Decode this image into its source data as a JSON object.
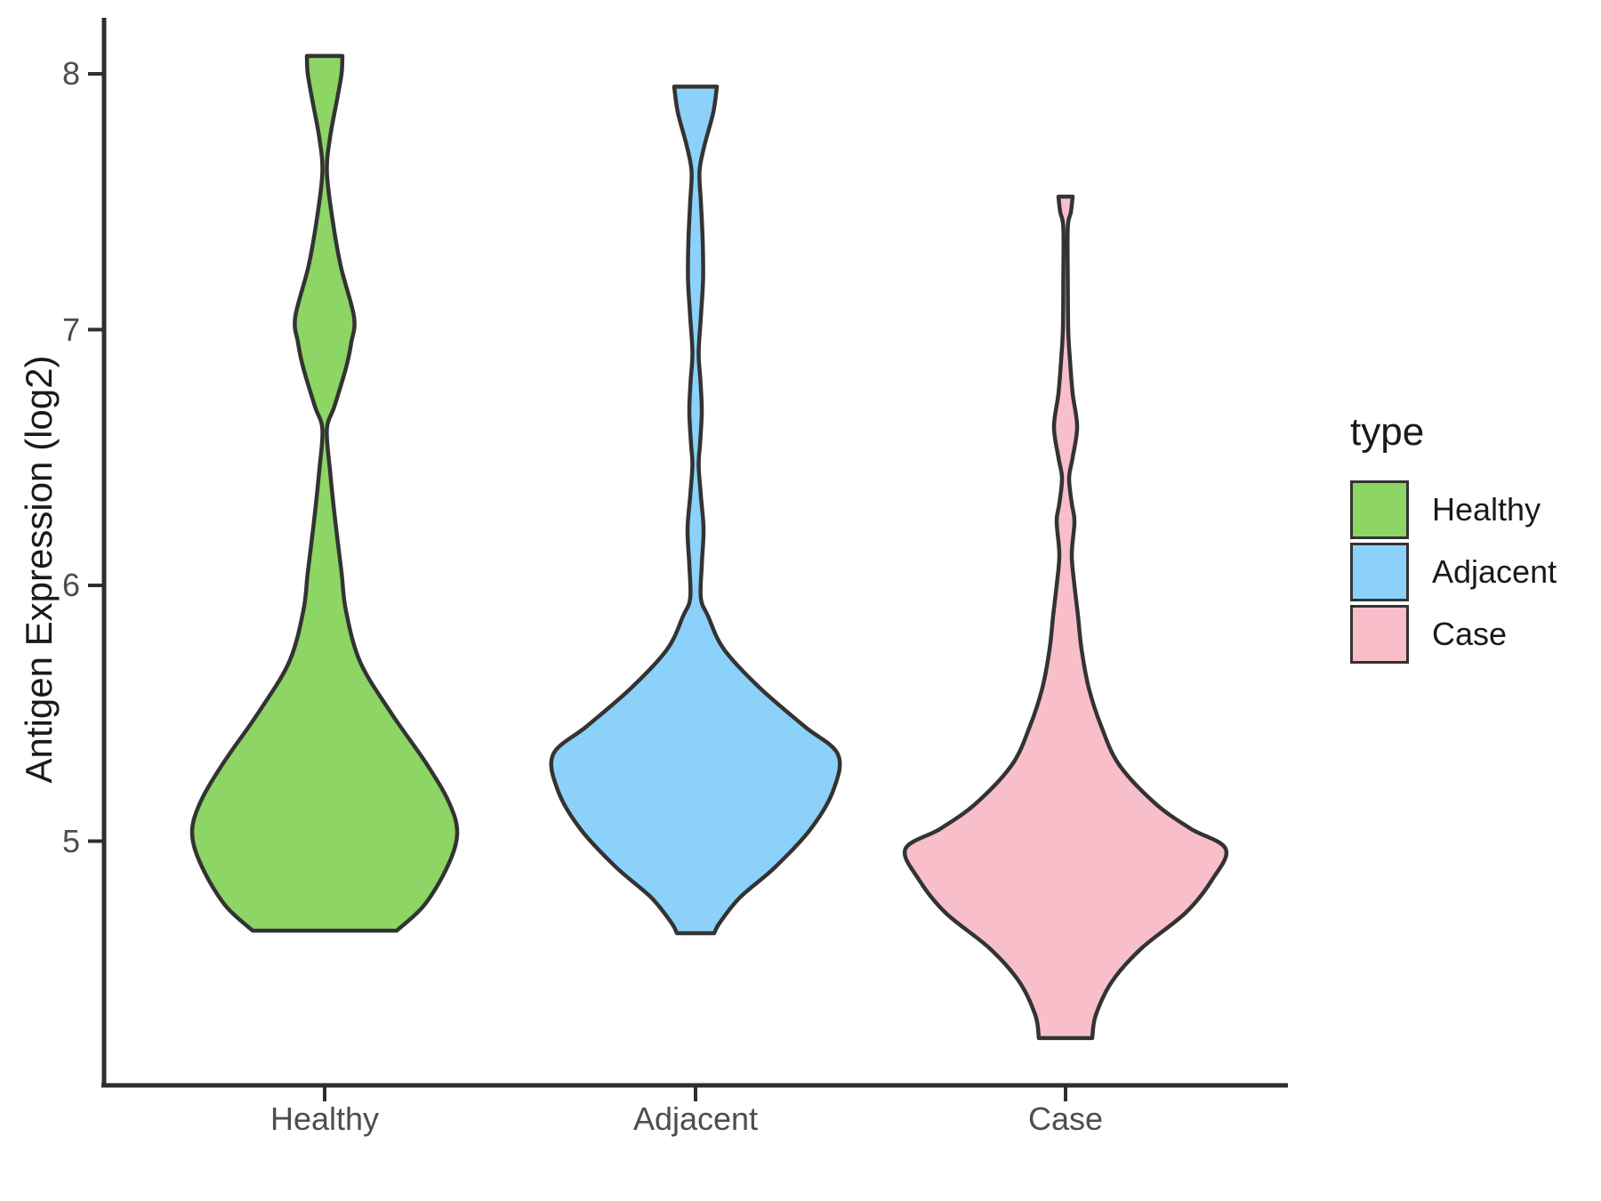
{
  "figure": {
    "background": "#ffffff",
    "outline_color": "#333333",
    "axis_color": "#2e2e2e",
    "tick_text_color": "#4d4d4d"
  },
  "y_axis": {
    "label": "Antigen Expression (log2)",
    "ticks": [
      8,
      7,
      6,
      5
    ]
  },
  "x_axis": {
    "categories": [
      "Healthy",
      "Adjacent",
      "Case"
    ]
  },
  "legend": {
    "title": "type",
    "entries": [
      {
        "label": "Healthy",
        "color": "#8dd564"
      },
      {
        "label": "Adjacent",
        "color": "#8bd1fa"
      },
      {
        "label": "Case",
        "color": "#f8bfca"
      }
    ]
  },
  "chart_data": {
    "type": "violin",
    "title": "",
    "xlabel": "",
    "ylabel": "Antigen Expression (log2)",
    "categories": [
      "Healthy",
      "Adjacent",
      "Case"
    ],
    "y_ticks": [
      8,
      7,
      6,
      5
    ],
    "ylim": [
      4.0,
      8.2
    ],
    "grid": false,
    "legend_position": "right",
    "series": [
      {
        "name": "Healthy",
        "color": "#8dd564",
        "value_range": [
          4.65,
          8.07
        ],
        "profile": [
          [
            8.07,
            20
          ],
          [
            8.0,
            19
          ],
          [
            7.9,
            14
          ],
          [
            7.75,
            6
          ],
          [
            7.62,
            2.5
          ],
          [
            7.45,
            8
          ],
          [
            7.25,
            18
          ],
          [
            7.05,
            33
          ],
          [
            6.95,
            30
          ],
          [
            6.85,
            24
          ],
          [
            6.7,
            11
          ],
          [
            6.61,
            2.5
          ],
          [
            6.45,
            6
          ],
          [
            6.25,
            12
          ],
          [
            6.05,
            19
          ],
          [
            5.9,
            24
          ],
          [
            5.7,
            40
          ],
          [
            5.5,
            75
          ],
          [
            5.3,
            115
          ],
          [
            5.15,
            140
          ],
          [
            5.03,
            149
          ],
          [
            4.9,
            138
          ],
          [
            4.75,
            112
          ],
          [
            4.65,
            81
          ]
        ]
      },
      {
        "name": "Adjacent",
        "color": "#8bd1fa",
        "value_range": [
          4.64,
          7.95
        ],
        "profile": [
          [
            7.95,
            24
          ],
          [
            7.85,
            20
          ],
          [
            7.72,
            10
          ],
          [
            7.62,
            4.5
          ],
          [
            7.5,
            6
          ],
          [
            7.35,
            8
          ],
          [
            7.2,
            8.5
          ],
          [
            7.05,
            6
          ],
          [
            6.91,
            3.5
          ],
          [
            6.8,
            5.5
          ],
          [
            6.68,
            7
          ],
          [
            6.55,
            5
          ],
          [
            6.47,
            3.5
          ],
          [
            6.35,
            6
          ],
          [
            6.22,
            9
          ],
          [
            6.08,
            7
          ],
          [
            5.95,
            6
          ],
          [
            5.88,
            14
          ],
          [
            5.75,
            32
          ],
          [
            5.6,
            72
          ],
          [
            5.45,
            122
          ],
          [
            5.34,
            160
          ],
          [
            5.2,
            155
          ],
          [
            5.05,
            130
          ],
          [
            4.9,
            90
          ],
          [
            4.78,
            50
          ],
          [
            4.68,
            27
          ],
          [
            4.64,
            21
          ]
        ]
      },
      {
        "name": "Case",
        "color": "#f8bfca",
        "value_range": [
          4.23,
          7.52
        ],
        "profile": [
          [
            7.52,
            8
          ],
          [
            7.46,
            6
          ],
          [
            7.4,
            2.5
          ],
          [
            7.2,
            2.5
          ],
          [
            7.0,
            3
          ],
          [
            6.88,
            5
          ],
          [
            6.75,
            8
          ],
          [
            6.62,
            13
          ],
          [
            6.5,
            8
          ],
          [
            6.42,
            4
          ],
          [
            6.32,
            7
          ],
          [
            6.25,
            10
          ],
          [
            6.12,
            7
          ],
          [
            6.0,
            10
          ],
          [
            5.88,
            14
          ],
          [
            5.75,
            18
          ],
          [
            5.6,
            26
          ],
          [
            5.45,
            40
          ],
          [
            5.3,
            60
          ],
          [
            5.15,
            100
          ],
          [
            5.05,
            140
          ],
          [
            4.97,
            180
          ],
          [
            4.85,
            165
          ],
          [
            4.72,
            135
          ],
          [
            4.58,
            85
          ],
          [
            4.45,
            52
          ],
          [
            4.32,
            34
          ],
          [
            4.23,
            30
          ]
        ]
      }
    ]
  }
}
